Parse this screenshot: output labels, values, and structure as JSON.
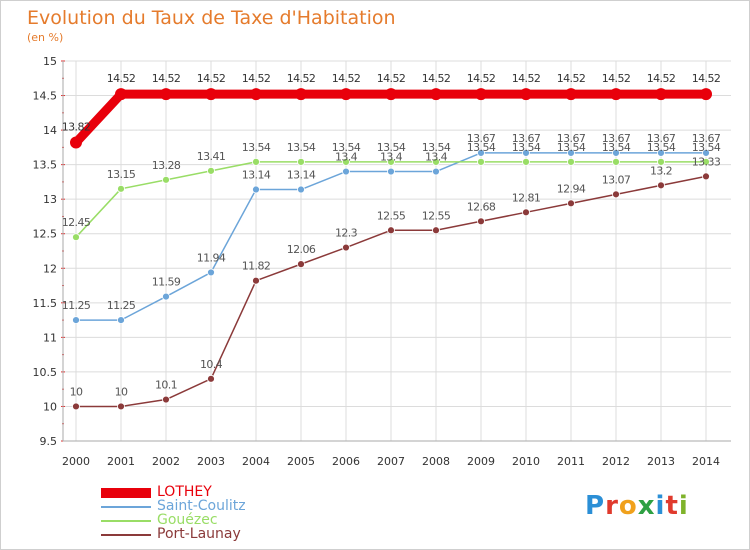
{
  "title": "Evolution du Taux de Taxe d'Habitation",
  "subtitle": "(en %)",
  "logo": {
    "text": "Proxiti",
    "colors": [
      "#2b8fd6",
      "#e03a2d",
      "#f0a11c",
      "#2ea043",
      "#2b8fd6",
      "#e03a2d",
      "#7fb32b"
    ]
  },
  "chart_data": {
    "type": "line",
    "title": "Evolution du Taux de Taxe d'Habitation",
    "subtitle": "(en %)",
    "x": [
      "2000",
      "2001",
      "2002",
      "2003",
      "2004",
      "2005",
      "2006",
      "2007",
      "2008",
      "2009",
      "2010",
      "2011",
      "2012",
      "2013",
      "2014"
    ],
    "ylim": [
      9.5,
      15
    ],
    "yticks": [
      "9.5",
      "10",
      "10.5",
      "11",
      "11.5",
      "12",
      "12.5",
      "13",
      "13.5",
      "14",
      "14.5",
      "15"
    ],
    "grid": true,
    "legend_position": "bottom-left",
    "series": [
      {
        "name": "LOTHEY",
        "color": "#e8000b",
        "labelColor": "#333333",
        "values": [
          13.82,
          14.52,
          14.52,
          14.52,
          14.52,
          14.52,
          14.52,
          14.52,
          14.52,
          14.52,
          14.52,
          14.52,
          14.52,
          14.52,
          14.52
        ],
        "labels": [
          "13.82",
          "14.52",
          "14.52",
          "14.52",
          "14.52",
          "14.52",
          "14.52",
          "14.52",
          "14.52",
          "14.52",
          "14.52",
          "14.52",
          "14.52",
          "14.52",
          "14.52"
        ]
      },
      {
        "name": "Saint-Coulitz",
        "color": "#6ca5d9",
        "labelColor": "#555555",
        "values": [
          11.25,
          11.25,
          11.59,
          11.94,
          13.14,
          13.14,
          13.4,
          13.4,
          13.4,
          13.67,
          13.67,
          13.67,
          13.67,
          13.67,
          13.67
        ],
        "labels": [
          "11.25",
          "11.25",
          "11.59",
          "11.94",
          "13.14",
          "13.14",
          "13.4",
          "13.4",
          "13.4",
          "13.67",
          "13.67",
          "13.67",
          "13.67",
          "13.67",
          "13.67"
        ]
      },
      {
        "name": "Gouézec",
        "color": "#99dd66",
        "labelColor": "#555555",
        "values": [
          12.45,
          13.15,
          13.28,
          13.41,
          13.54,
          13.54,
          13.54,
          13.54,
          13.54,
          13.54,
          13.54,
          13.54,
          13.54,
          13.54,
          13.54
        ],
        "labels": [
          "12.45",
          "13.15",
          "13.28",
          "13.41",
          "13.54",
          "13.54",
          "13.54",
          "13.54",
          "13.54",
          "13.54",
          "13.54",
          "13.54",
          "13.54",
          "13.54",
          "13.54"
        ]
      },
      {
        "name": "Port-Launay",
        "color": "#8b3a3a",
        "labelColor": "#555555",
        "values": [
          10,
          10,
          10.1,
          10.4,
          11.82,
          12.06,
          12.3,
          12.55,
          12.55,
          12.68,
          12.81,
          12.94,
          13.07,
          13.2,
          13.33
        ],
        "labels": [
          "10",
          "10",
          "10.1",
          "10.4",
          "11.82",
          "12.06",
          "12.3",
          "12.55",
          "12.55",
          "12.68",
          "12.81",
          "12.94",
          "13.07",
          "13.2",
          "13.33"
        ]
      }
    ]
  }
}
